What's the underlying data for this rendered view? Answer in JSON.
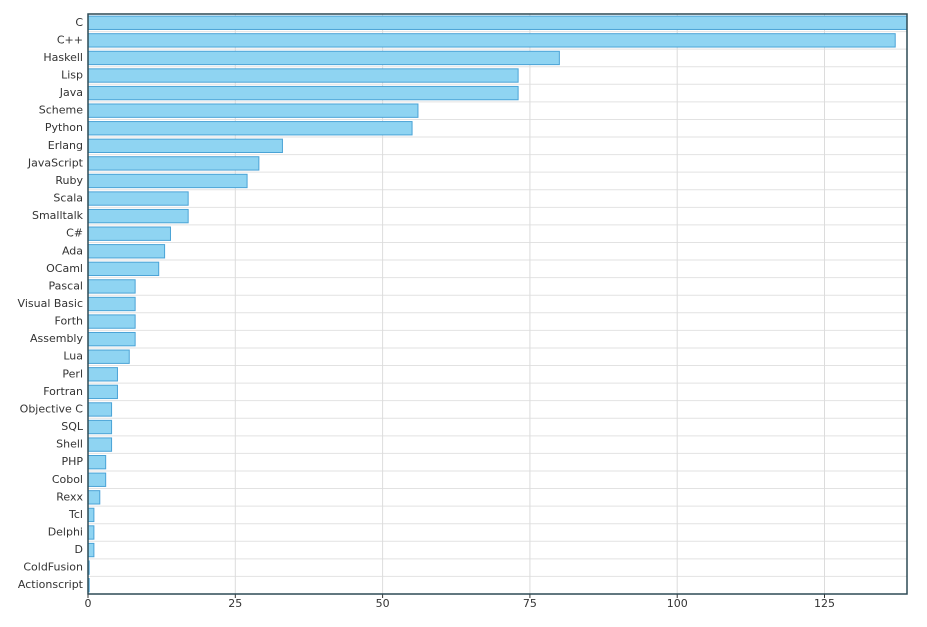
{
  "chart_data": {
    "type": "bar",
    "orientation": "horizontal",
    "categories": [
      "C",
      "C++",
      "Haskell",
      "Lisp",
      "Java",
      "Scheme",
      "Python",
      "Erlang",
      "JavaScript",
      "Ruby",
      "Scala",
      "Smalltalk",
      "C#",
      "Ada",
      "OCaml",
      "Pascal",
      "Visual Basic",
      "Forth",
      "Assembly",
      "Lua",
      "Perl",
      "Fortran",
      "Objective C",
      "SQL",
      "Shell",
      "PHP",
      "Cobol",
      "Rexx",
      "Tcl",
      "Delphi",
      "D",
      "ColdFusion",
      "Actionscript"
    ],
    "values": [
      139,
      137,
      80,
      73,
      73,
      56,
      55,
      33,
      29,
      27,
      17,
      17,
      14,
      13,
      12,
      8,
      8,
      8,
      8,
      7,
      5,
      5,
      4,
      4,
      4,
      3,
      3,
      2,
      1,
      1,
      1,
      0.2,
      0.2
    ],
    "color": "#8fd4f2",
    "xlim": [
      0,
      139
    ],
    "xticks": [
      0,
      25,
      50,
      75,
      100,
      125
    ],
    "grid": true
  }
}
